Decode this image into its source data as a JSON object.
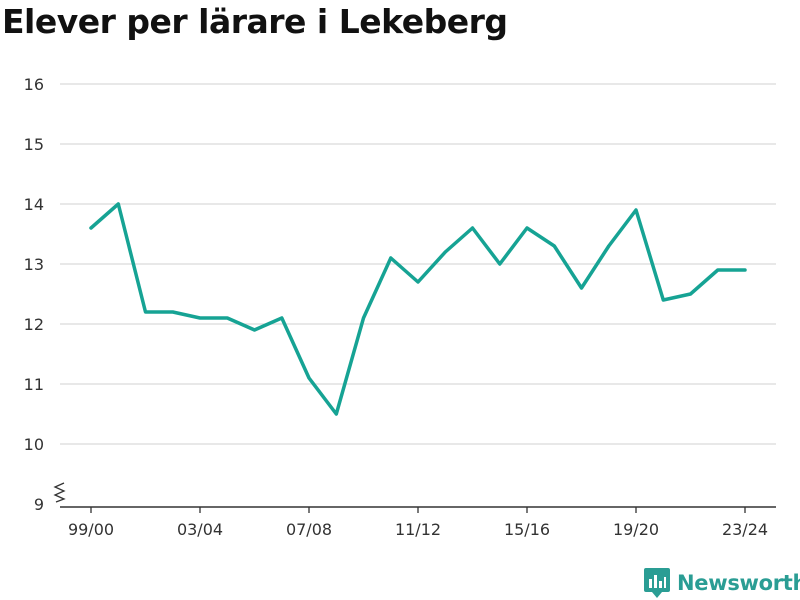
{
  "title": "Elever per lärare i Lekeberg",
  "brand": {
    "name": "Newsworthy",
    "logo_icon": "newsworthy-logo-icon"
  },
  "colors": {
    "line": "#16a394",
    "grid": "#d9d9d9",
    "axis": "#333333",
    "brand": "#2a9d94"
  },
  "chart_data": {
    "type": "line",
    "title": "Elever per lärare i Lekeberg",
    "xlabel": "",
    "ylabel": "",
    "ylim": [
      9,
      16
    ],
    "y_ticks": [
      9,
      10,
      11,
      12,
      13,
      14,
      15,
      16
    ],
    "y_axis_break": true,
    "grid": true,
    "x_tick_labels": [
      "99/00",
      "03/04",
      "07/08",
      "11/12",
      "15/16",
      "19/20",
      "23/24"
    ],
    "categories": [
      "99/00",
      "00/01",
      "01/02",
      "02/03",
      "03/04",
      "04/05",
      "05/06",
      "06/07",
      "07/08",
      "08/09",
      "09/10",
      "10/11",
      "11/12",
      "12/13",
      "13/14",
      "14/15",
      "15/16",
      "16/17",
      "17/18",
      "18/19",
      "19/20",
      "20/21",
      "21/22",
      "22/23",
      "23/24"
    ],
    "series": [
      {
        "values": [
          13.6,
          14.0,
          12.2,
          12.2,
          12.1,
          12.1,
          11.9,
          12.1,
          11.1,
          10.5,
          12.1,
          13.1,
          12.7,
          13.2,
          13.6,
          13.0,
          13.6,
          13.3,
          12.6,
          13.3,
          13.9,
          12.4,
          12.5,
          12.9,
          12.9
        ]
      }
    ]
  }
}
